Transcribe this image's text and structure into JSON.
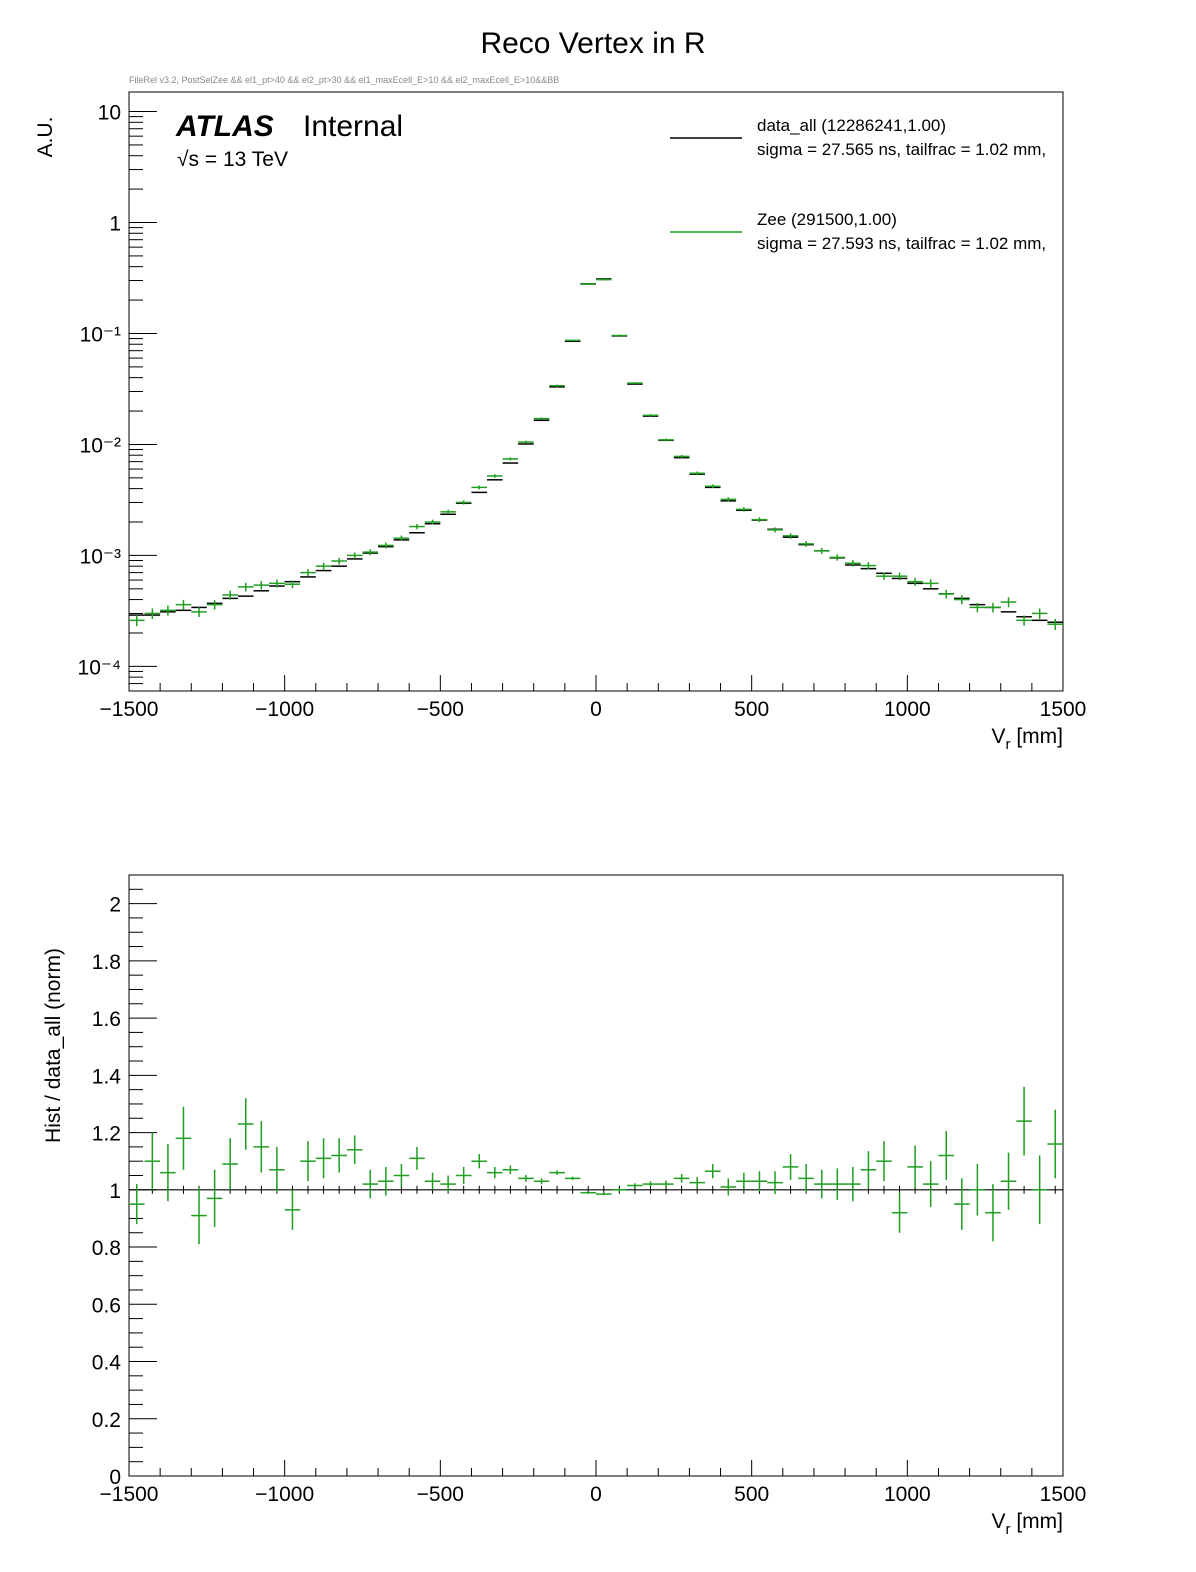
{
  "title": "Reco Vertex in R",
  "subtitle": "FileRel v3.2, PostSelZee && el1_pt>40 && el2_pt>30 && el1_maxEcell_E>10 && el2_maxEcell_E>10&&BB",
  "atlas_label": "ATLAS",
  "atlas_status": "Internal",
  "energy_label": "√s = 13 TeV",
  "colors": {
    "data_all": "#000000",
    "Zee": "#1f9e1f",
    "frame": "#000000"
  },
  "chart_data": [
    {
      "type": "scatter",
      "panel": "top",
      "title": "Reco Vertex in R",
      "xlabel": "V_r [mm]",
      "ylabel": "A.U.",
      "log_y": true,
      "xlim": [
        -1500,
        1500
      ],
      "ylim": [
        6e-05,
        15
      ],
      "grid": false,
      "legend_placement": "top-right",
      "legend": [
        {
          "label": "data_all  (12286241,1.00)",
          "info": "sigma = 27.565 ns, tailfrac = 1.02 mm,"
        },
        {
          "label": "Zee  (291500,1.00)",
          "info": "sigma = 27.593 ns, tailfrac = 1.02 mm,"
        }
      ],
      "x_ticks": [
        "−1500",
        "−1000",
        "−500",
        "0",
        "500",
        "1000",
        "1500"
      ],
      "x": [
        -1475,
        -1425,
        -1375,
        -1325,
        -1275,
        -1225,
        -1175,
        -1125,
        -1075,
        -1025,
        -975,
        -925,
        -875,
        -825,
        -775,
        -725,
        -675,
        -625,
        -575,
        -525,
        -475,
        -425,
        -375,
        -325,
        -275,
        -225,
        -175,
        -125,
        -75,
        -25,
        25,
        75,
        125,
        175,
        225,
        275,
        325,
        375,
        425,
        475,
        525,
        575,
        625,
        675,
        725,
        775,
        825,
        875,
        925,
        975,
        1025,
        1075,
        1125,
        1175,
        1225,
        1275,
        1325,
        1375,
        1425,
        1475
      ],
      "series": [
        {
          "name": "data_all",
          "values": [
            0.00029,
            0.00029,
            0.00031,
            0.00032,
            0.00034,
            0.00037,
            0.00041,
            0.00043,
            0.00048,
            0.00053,
            0.00058,
            0.00064,
            0.00073,
            0.0008,
            0.00093,
            0.00105,
            0.0012,
            0.00138,
            0.0016,
            0.00193,
            0.00235,
            0.00295,
            0.0037,
            0.0048,
            0.0068,
            0.0101,
            0.0165,
            0.033,
            0.085,
            0.28,
            0.31,
            0.095,
            0.035,
            0.018,
            0.0109,
            0.0076,
            0.0054,
            0.0041,
            0.0031,
            0.00255,
            0.00208,
            0.00172,
            0.00146,
            0.00125,
            0.0011,
            0.00095,
            0.00082,
            0.00076,
            0.00069,
            0.00062,
            0.00056,
            0.0005,
            0.00045,
            0.00041,
            0.00036,
            0.00034,
            0.00031,
            0.00028,
            0.00026,
            0.00025
          ]
        },
        {
          "name": "Zee",
          "values": [
            0.00026,
            0.0003,
            0.00032,
            0.00036,
            0.00031,
            0.00036,
            0.00044,
            0.00052,
            0.00054,
            0.00056,
            0.00055,
            0.0007,
            0.0008,
            0.00089,
            0.001,
            0.00107,
            0.00123,
            0.00143,
            0.00182,
            0.002,
            0.00247,
            0.003,
            0.0041,
            0.0052,
            0.0074,
            0.0105,
            0.0171,
            0.0338,
            0.0866,
            0.2785,
            0.3056,
            0.0958,
            0.0357,
            0.0183,
            0.011,
            0.0078,
            0.0055,
            0.0042,
            0.0032,
            0.0026,
            0.0021,
            0.0017,
            0.0015,
            0.00127,
            0.0011,
            0.00096,
            0.00085,
            0.00081,
            0.00065,
            0.00065,
            0.00058,
            0.00056,
            0.00045,
            0.0004,
            0.00034,
            0.00034,
            0.00038,
            0.00026,
            0.0003,
            0.00024
          ]
        }
      ]
    },
    {
      "type": "scatter",
      "panel": "bottom",
      "xlabel": "V_r [mm]",
      "ylabel": "Hist / data_all  (norm)",
      "xlim": [
        -1500,
        1500
      ],
      "ylim": [
        0,
        2.1
      ],
      "y_ticks": [
        "0",
        "0.2",
        "0.4",
        "0.6",
        "0.8",
        "1",
        "1.2",
        "1.4",
        "1.6",
        "1.8",
        "2"
      ],
      "x_ticks": [
        "−1500",
        "−1000",
        "−500",
        "0",
        "500",
        "1000",
        "1500"
      ],
      "x": [
        -1475,
        -1425,
        -1375,
        -1325,
        -1275,
        -1225,
        -1175,
        -1125,
        -1075,
        -1025,
        -975,
        -925,
        -875,
        -825,
        -775,
        -725,
        -675,
        -625,
        -575,
        -525,
        -475,
        -425,
        -375,
        -325,
        -275,
        -225,
        -175,
        -125,
        -75,
        -25,
        25,
        75,
        125,
        175,
        225,
        275,
        325,
        375,
        425,
        475,
        525,
        575,
        625,
        675,
        725,
        775,
        825,
        875,
        925,
        975,
        1025,
        1075,
        1125,
        1175,
        1225,
        1275,
        1325,
        1375,
        1425,
        1475
      ],
      "series": [
        {
          "name": "data_all",
          "values": [
            1,
            1,
            1,
            1,
            1,
            1,
            1,
            1,
            1,
            1,
            1,
            1,
            1,
            1,
            1,
            1,
            1,
            1,
            1,
            1,
            1,
            1,
            1,
            1,
            1,
            1,
            1,
            1,
            1,
            1,
            1,
            1,
            1,
            1,
            1,
            1,
            1,
            1,
            1,
            1,
            1,
            1,
            1,
            1,
            1,
            1,
            1,
            1,
            1,
            1,
            1,
            1,
            1,
            1,
            1,
            1,
            1,
            1,
            1,
            1
          ]
        },
        {
          "name": "Zee",
          "values": [
            0.95,
            1.1,
            1.06,
            1.18,
            0.91,
            0.97,
            1.09,
            1.23,
            1.15,
            1.07,
            0.93,
            1.1,
            1.11,
            1.12,
            1.14,
            1.02,
            1.03,
            1.05,
            1.11,
            1.03,
            1.02,
            1.05,
            1.1,
            1.06,
            1.07,
            1.04,
            1.03,
            1.06,
            1.04,
            0.99,
            0.985,
            1.0,
            1.015,
            1.02,
            1.02,
            1.04,
            1.025,
            1.065,
            1.01,
            1.03,
            1.03,
            1.025,
            1.08,
            1.04,
            1.02,
            1.02,
            1.02,
            1.07,
            1.1,
            0.92,
            1.08,
            1.02,
            1.12,
            0.95,
            1.0,
            0.92,
            1.03,
            1.24,
            1.0,
            1.16
          ],
          "errors": [
            0.07,
            0.1,
            0.1,
            0.11,
            0.1,
            0.1,
            0.09,
            0.09,
            0.09,
            0.08,
            0.07,
            0.07,
            0.07,
            0.06,
            0.05,
            0.05,
            0.05,
            0.04,
            0.04,
            0.03,
            0.03,
            0.03,
            0.025,
            0.02,
            0.015,
            0.012,
            0.01,
            0.008,
            0.006,
            0.004,
            0.004,
            0.006,
            0.008,
            0.01,
            0.012,
            0.015,
            0.02,
            0.025,
            0.03,
            0.03,
            0.035,
            0.04,
            0.045,
            0.05,
            0.05,
            0.055,
            0.06,
            0.065,
            0.07,
            0.07,
            0.075,
            0.08,
            0.085,
            0.09,
            0.09,
            0.1,
            0.1,
            0.12,
            0.12,
            0.12
          ]
        }
      ]
    }
  ]
}
